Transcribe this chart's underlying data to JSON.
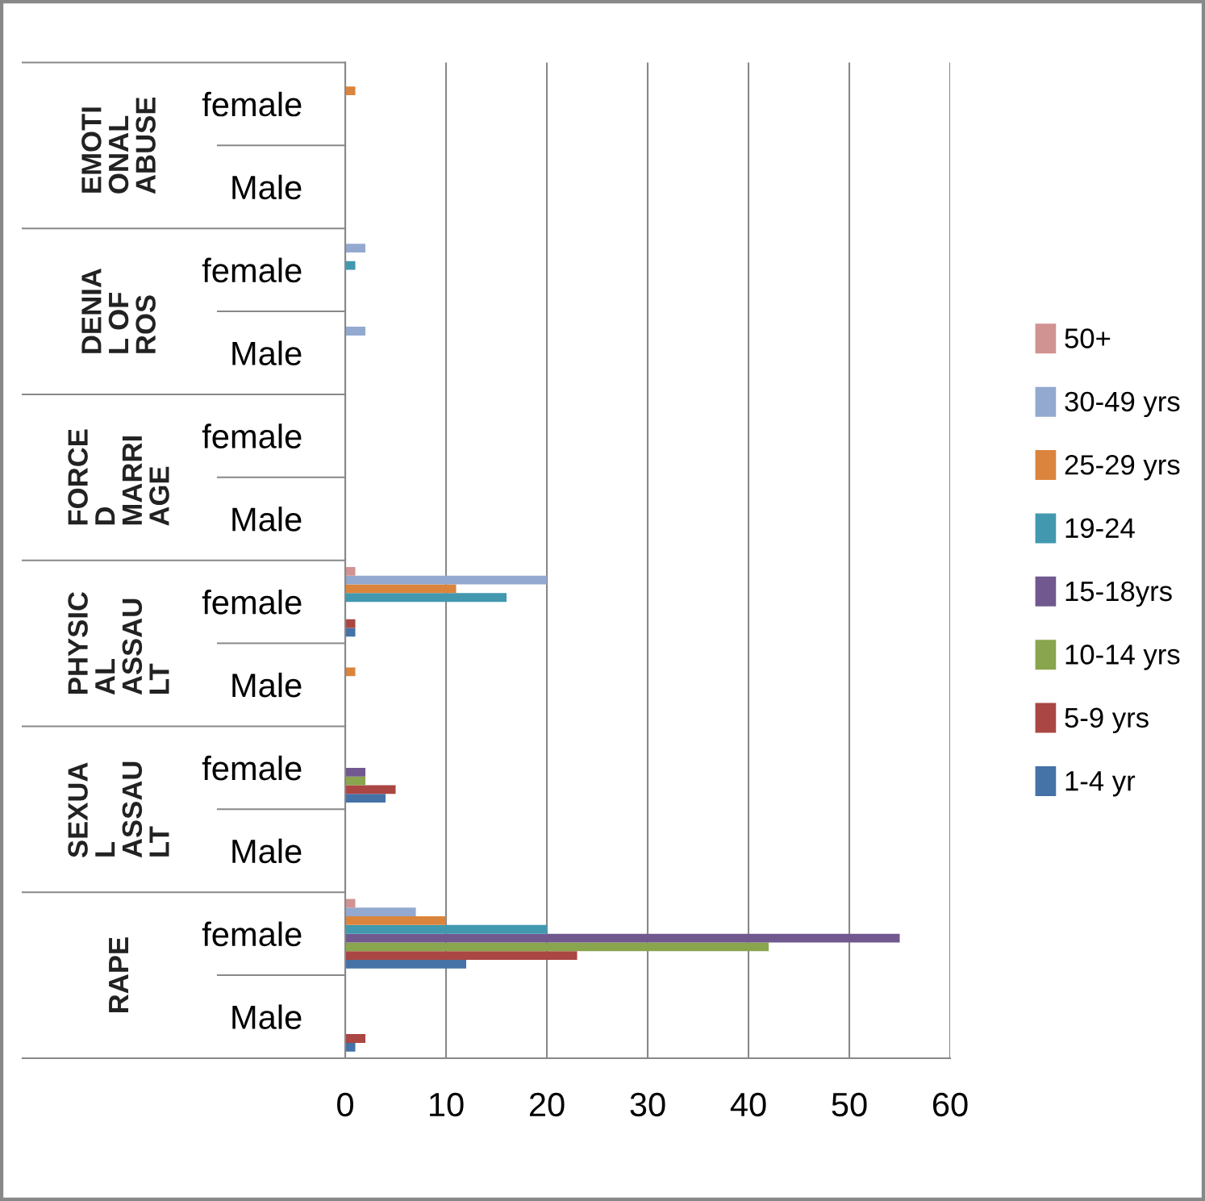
{
  "chart_data": {
    "type": "bar",
    "orientation": "horizontal",
    "categories": [
      "female",
      "Male",
      "female",
      "Male",
      "female",
      "Male",
      "female",
      "Male",
      "female",
      "Male",
      "female",
      "Male"
    ],
    "annotations": [
      "EMOTI\nONAL\nABUSE",
      "DENIA\nL OF\nROS",
      "FORCE\nD\nMARRI\nAGE",
      "PHYSIC\nAL\nASSAU\nLT",
      "SEXUA\nL\nASSAU\nLT",
      "RAPE"
    ],
    "series": [
      {
        "name": "1-4 yr",
        "color": "#4572a7",
        "values": [
          0,
          0,
          0,
          0,
          0,
          0,
          1,
          0,
          4,
          0,
          12,
          1
        ]
      },
      {
        "name": "5-9 yrs",
        "color": "#aa4643",
        "values": [
          0,
          0,
          0,
          0,
          0,
          0,
          1,
          0,
          5,
          0,
          23,
          2
        ]
      },
      {
        "name": "10-14 yrs",
        "color": "#89a54e",
        "values": [
          0,
          0,
          0,
          0,
          0,
          0,
          0,
          0,
          2,
          0,
          42,
          0
        ]
      },
      {
        "name": "15-18yrs",
        "color": "#71588f",
        "values": [
          0,
          0,
          0,
          0,
          0,
          0,
          0,
          0,
          2,
          0,
          55,
          0
        ]
      },
      {
        "name": "19-24",
        "color": "#4198af",
        "values": [
          0,
          0,
          1,
          0,
          0,
          0,
          16,
          0,
          0,
          0,
          20,
          0
        ]
      },
      {
        "name": "25-29 yrs",
        "color": "#db843d",
        "values": [
          1,
          0,
          0,
          0,
          0,
          0,
          11,
          1,
          0,
          0,
          10,
          0
        ]
      },
      {
        "name": "30-49 yrs",
        "color": "#93a9cf",
        "values": [
          0,
          0,
          2,
          2,
          0,
          0,
          20,
          0,
          0,
          0,
          7,
          0
        ]
      },
      {
        "name": "50+",
        "color": "#d19392",
        "values": [
          0,
          0,
          0,
          0,
          0,
          0,
          1,
          0,
          0,
          0,
          1,
          0
        ]
      }
    ],
    "xlim": [
      0,
      60
    ],
    "xticks": [
      0,
      10,
      20,
      30,
      40,
      50,
      60
    ],
    "grid": "x",
    "legend": "right"
  }
}
